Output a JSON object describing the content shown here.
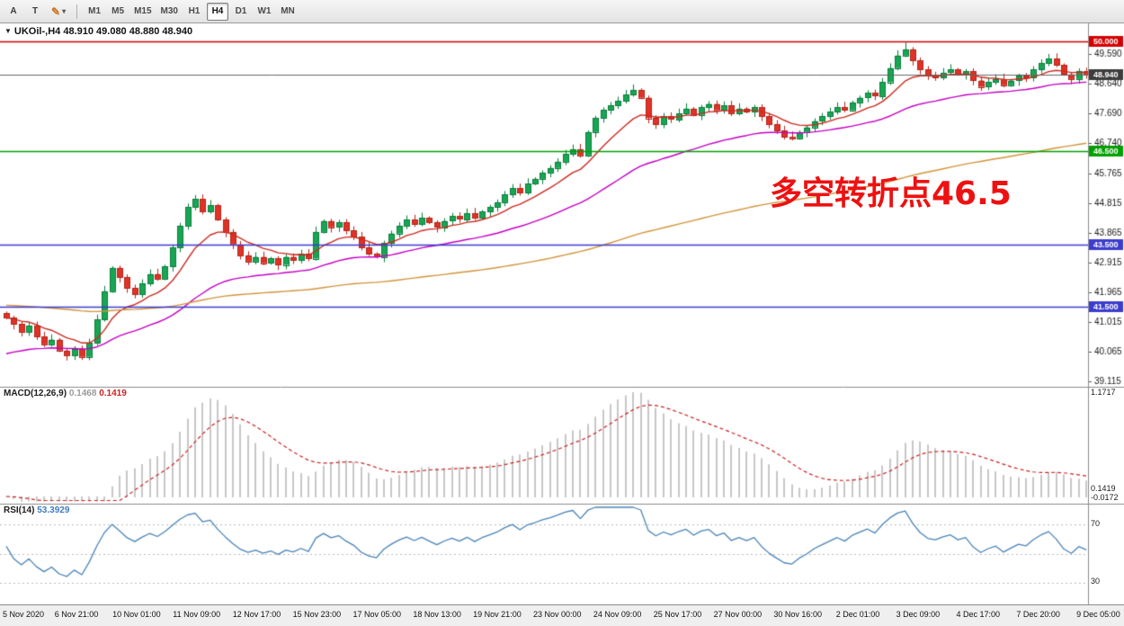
{
  "toolbar": {
    "buttons": [
      {
        "name": "arrow-tool",
        "label": "A"
      },
      {
        "name": "text-tool",
        "label": "T"
      },
      {
        "name": "crayon-tool",
        "label": "✎"
      }
    ],
    "dropdown_caret": "▾",
    "timeframes": [
      {
        "label": "M1",
        "active": false
      },
      {
        "label": "M5",
        "active": false
      },
      {
        "label": "M15",
        "active": false
      },
      {
        "label": "M30",
        "active": false
      },
      {
        "label": "H1",
        "active": false
      },
      {
        "label": "H4",
        "active": true
      },
      {
        "label": "D1",
        "active": false
      },
      {
        "label": "W1",
        "active": false
      },
      {
        "label": "MN",
        "active": false
      }
    ]
  },
  "chart": {
    "collapse_arrow": "▼",
    "symbol_tf": "UKOil-,H4",
    "ohlc": "48.910 49.080 48.880 48.940",
    "annotation": "多空转折点46.5",
    "price_axis_labels": [
      "49.590",
      "48.640",
      "47.690",
      "46.740",
      "45.765",
      "44.815",
      "43.865",
      "42.915",
      "41.965",
      "41.015",
      "40.065",
      "39.115"
    ],
    "price_badges": [
      {
        "label": "50.000",
        "price": 50.0,
        "color": "#d40000"
      },
      {
        "label": "48.940",
        "price": 48.94,
        "color": "#3c3c3c"
      },
      {
        "label": "46.500",
        "price": 46.5,
        "color": "#00a000"
      },
      {
        "label": "43.500",
        "price": 43.5,
        "color": "#3c3ccd"
      },
      {
        "label": "41.500",
        "price": 41.5,
        "color": "#3c3ccd"
      }
    ],
    "time_axis_labels": [
      "5 Nov 2020",
      "6 Nov 21:00",
      "10 Nov 01:00",
      "11 Nov 09:00",
      "12 Nov 17:00",
      "15 Nov 23:00",
      "17 Nov 05:00",
      "18 Nov 13:00",
      "19 Nov 21:00",
      "23 Nov 00:00",
      "24 Nov 09:00",
      "25 Nov 17:00",
      "27 Nov 00:00",
      "30 Nov 16:00",
      "2 Dec 01:00",
      "3 Dec 09:00",
      "4 Dec 17:00",
      "7 Dec 20:00",
      "9 Dec 05:00"
    ]
  },
  "macd": {
    "name": "MACD(12,26,9)",
    "main_value": "0.1468",
    "signal_value": "0.1419",
    "axis_top": "1.1717",
    "axis_mid": "0.1419",
    "axis_bottom": "-0.0172"
  },
  "rsi": {
    "name": "RSI(14)",
    "value": "53.3929",
    "axis_top": "70",
    "axis_bottom": "30"
  },
  "chart_data": {
    "type": "candlestick",
    "symbol": "UKOil-",
    "timeframe": "H4",
    "ylim": [
      38.94,
      50.58
    ],
    "first_open": 41.3,
    "closes": [
      41.15,
      40.95,
      40.7,
      40.9,
      40.55,
      40.3,
      40.45,
      40.1,
      39.95,
      40.15,
      39.9,
      40.35,
      41.1,
      42.0,
      42.75,
      42.45,
      42.1,
      41.9,
      42.25,
      42.55,
      42.4,
      42.8,
      43.4,
      44.1,
      44.7,
      44.95,
      44.55,
      44.75,
      44.3,
      43.9,
      43.5,
      43.15,
      42.95,
      43.1,
      42.9,
      43.05,
      42.85,
      43.1,
      43.0,
      43.2,
      43.05,
      43.9,
      44.25,
      44.05,
      44.2,
      43.95,
      43.75,
      43.4,
      43.2,
      43.1,
      43.55,
      43.85,
      44.1,
      44.3,
      44.15,
      44.35,
      44.2,
      44.05,
      44.25,
      44.4,
      44.3,
      44.5,
      44.35,
      44.55,
      44.7,
      44.85,
      45.1,
      45.3,
      45.15,
      45.45,
      45.6,
      45.8,
      45.95,
      46.15,
      46.4,
      46.55,
      46.35,
      47.1,
      47.55,
      47.8,
      47.95,
      48.1,
      48.3,
      48.45,
      48.2,
      47.55,
      47.35,
      47.6,
      47.5,
      47.7,
      47.85,
      47.65,
      47.9,
      48.0,
      47.8,
      47.95,
      47.7,
      47.85,
      47.75,
      47.9,
      47.6,
      47.35,
      47.15,
      46.95,
      46.9,
      47.1,
      47.25,
      47.45,
      47.6,
      47.75,
      47.9,
      47.8,
      48.05,
      48.2,
      48.35,
      48.25,
      48.7,
      49.15,
      49.55,
      49.75,
      49.4,
      49.1,
      48.9,
      48.85,
      49.0,
      49.1,
      48.95,
      49.05,
      48.75,
      48.55,
      48.7,
      48.8,
      48.6,
      48.75,
      48.9,
      48.85,
      49.1,
      49.3,
      49.45,
      49.25,
      48.95,
      48.8,
      49.05,
      48.94
    ],
    "wick_overrides": [
      {
        "i": 119,
        "high": 49.97
      },
      {
        "i": 10,
        "low": 39.8
      }
    ],
    "current_price": 48.94,
    "levels": [
      {
        "price": 50.0,
        "color": "#d40000",
        "label": "50.000"
      },
      {
        "price": 46.5,
        "color": "#00a000",
        "label": "46.500"
      },
      {
        "price": 43.5,
        "color": "#3c3ccd",
        "label": "43.500"
      },
      {
        "price": 41.5,
        "color": "#3c3ccd",
        "label": "41.500"
      }
    ],
    "moving_averages": [
      {
        "name": "fast",
        "period": 10,
        "color": "#cc2a1f",
        "seed": null
      },
      {
        "name": "medium",
        "period": 34,
        "color": "#c400c4",
        "seed": 40.0
      },
      {
        "name": "slow",
        "period": 120,
        "color": "#d2953b",
        "seed": 41.55
      }
    ],
    "candle_colors": {
      "up": "#17a653",
      "up_border": "#0b7e3d",
      "down": "#e03226",
      "down_border": "#b3271d"
    },
    "indicators": {
      "macd": {
        "fast": 12,
        "slow": 26,
        "signal": 9,
        "histogram_color": "#c8c8c8",
        "signal_color": "#cc2222"
      },
      "rsi": {
        "period": 14,
        "color": "#4a84b8",
        "levels": [
          70,
          50,
          30
        ]
      }
    }
  }
}
